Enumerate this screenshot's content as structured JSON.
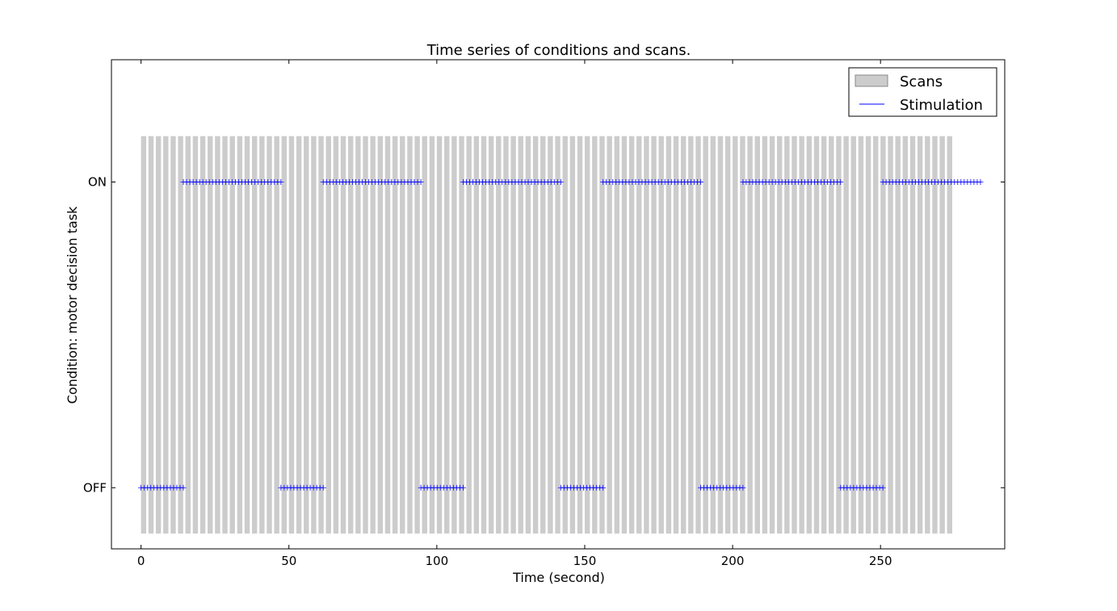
{
  "chart_data": {
    "type": "scatter",
    "title": "Time series of conditions and scans.",
    "xlabel": "Time (second)",
    "ylabel": "Condition: motor decision task",
    "xlim": [
      -10,
      292
    ],
    "ylim": [
      -0.2,
      1.4
    ],
    "x_ticks": [
      0,
      50,
      100,
      150,
      200,
      250
    ],
    "y_ticks": [
      {
        "value": 0,
        "label": "OFF"
      },
      {
        "value": 1,
        "label": "ON"
      }
    ],
    "legend": {
      "placement": "top-right",
      "entries": [
        {
          "label": "Scans",
          "kind": "patch",
          "color": "#cccccc"
        },
        {
          "label": "Stimulation",
          "kind": "line",
          "color": "#0000ff"
        }
      ]
    },
    "scans": {
      "name": "Scans",
      "start": 0,
      "step": 2.5,
      "count": 110,
      "bar_width": 1.75,
      "y_range": [
        -0.15,
        1.15
      ],
      "color": "#cccccc"
    },
    "series": [
      {
        "name": "Stimulation",
        "marker": "+",
        "color": "#0000ff",
        "sample_step": 1.1,
        "blocks": [
          {
            "condition": 0,
            "start": 0,
            "end": 14.3
          },
          {
            "condition": 1,
            "start": 14.3,
            "end": 47.3
          },
          {
            "condition": 0,
            "start": 47.3,
            "end": 61.6
          },
          {
            "condition": 1,
            "start": 61.6,
            "end": 94.6
          },
          {
            "condition": 0,
            "start": 94.6,
            "end": 108.9
          },
          {
            "condition": 1,
            "start": 108.9,
            "end": 141.9
          },
          {
            "condition": 0,
            "start": 141.9,
            "end": 156.2
          },
          {
            "condition": 1,
            "start": 156.2,
            "end": 189.2
          },
          {
            "condition": 0,
            "start": 189.2,
            "end": 203.5
          },
          {
            "condition": 1,
            "start": 203.5,
            "end": 236.5
          },
          {
            "condition": 0,
            "start": 236.5,
            "end": 250.8
          },
          {
            "condition": 1,
            "start": 250.8,
            "end": 283.8
          }
        ]
      }
    ],
    "grid": false
  }
}
